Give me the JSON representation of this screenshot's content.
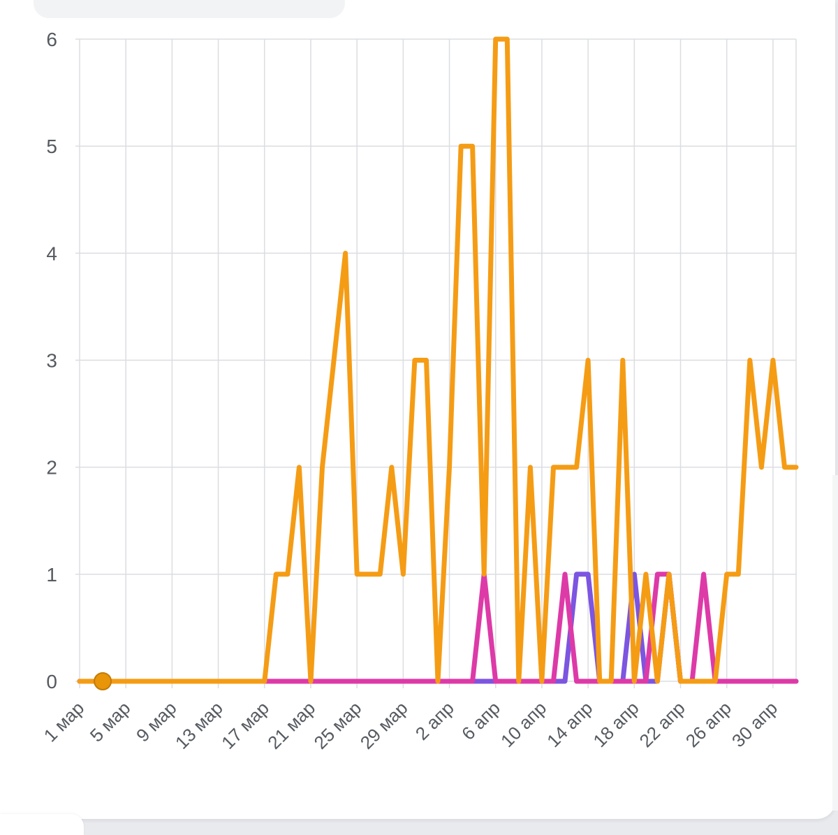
{
  "chart_data": {
    "type": "line",
    "x": [
      "1 мар",
      "2 мар",
      "3 мар",
      "4 мар",
      "5 мар",
      "6 мар",
      "7 мар",
      "8 мар",
      "9 мар",
      "10 мар",
      "11 мар",
      "12 мар",
      "13 мар",
      "14 мар",
      "15 мар",
      "16 мар",
      "17 мар",
      "18 мар",
      "19 мар",
      "20 мар",
      "21 мар",
      "22 мар",
      "23 мар",
      "24 мар",
      "25 мар",
      "26 мар",
      "27 мар",
      "28 мар",
      "29 мар",
      "30 мар",
      "31 мар",
      "1 апр",
      "2 апр",
      "3 апр",
      "4 апр",
      "5 апр",
      "6 апр",
      "7 апр",
      "8 апр",
      "9 апр",
      "10 апр",
      "11 апр",
      "12 апр",
      "13 апр",
      "14 апр",
      "15 апр",
      "16 апр",
      "17 апр",
      "18 апр",
      "19 апр",
      "20 апр",
      "21 апр",
      "22 апр",
      "23 апр",
      "24 апр",
      "25 апр",
      "26 апр",
      "27 апр",
      "28 апр",
      "29 апр",
      "30 апр",
      "1 мая",
      "2 мая"
    ],
    "xtick_labels": [
      "1 мар",
      "5 мар",
      "9 мар",
      "13 мар",
      "17 мар",
      "21 мар",
      "25 мар",
      "29 мар",
      "2 апр",
      "6 апр",
      "10 апр",
      "14 апр",
      "18 апр",
      "22 апр",
      "26 апр",
      "30 апр"
    ],
    "yticks": [
      "0",
      "1",
      "2",
      "3",
      "4",
      "5",
      "6"
    ],
    "ylim": [
      0,
      6
    ],
    "grid": true,
    "series": [
      {
        "color": "#7c55e0",
        "values": [
          0,
          0,
          0,
          0,
          0,
          0,
          0,
          0,
          0,
          0,
          0,
          0,
          0,
          0,
          0,
          0,
          0,
          0,
          0,
          0,
          0,
          0,
          0,
          0,
          0,
          0,
          0,
          0,
          0,
          0,
          0,
          0,
          0,
          0,
          0,
          0,
          0,
          0,
          0,
          0,
          0,
          0,
          0,
          1,
          1,
          0,
          0,
          0,
          1,
          0,
          0,
          1,
          0,
          0,
          0,
          0,
          0,
          0,
          0,
          0,
          0,
          0,
          0
        ]
      },
      {
        "color": "#dd3aa8",
        "values": [
          0,
          0,
          0,
          0,
          0,
          0,
          0,
          0,
          0,
          0,
          0,
          0,
          0,
          0,
          0,
          0,
          0,
          0,
          0,
          0,
          0,
          0,
          0,
          0,
          0,
          0,
          0,
          0,
          0,
          0,
          0,
          0,
          0,
          0,
          0,
          1,
          0,
          0,
          0,
          0,
          0,
          0,
          1,
          0,
          0,
          0,
          0,
          0,
          0,
          0,
          1,
          1,
          0,
          0,
          1,
          0,
          0,
          0,
          0,
          0,
          0,
          0,
          0
        ]
      },
      {
        "color": "#f59c15",
        "values": [
          0,
          0,
          0,
          0,
          0,
          0,
          0,
          0,
          0,
          0,
          0,
          0,
          0,
          0,
          0,
          0,
          0,
          1,
          1,
          2,
          0,
          2,
          3,
          4,
          1,
          1,
          1,
          2,
          1,
          3,
          3,
          0,
          2,
          5,
          5,
          1,
          6,
          6,
          0,
          2,
          0,
          2,
          2,
          2,
          3,
          0,
          0,
          3,
          0,
          1,
          0,
          1,
          0,
          0,
          0,
          0,
          1,
          1,
          3,
          2,
          3,
          2,
          2
        ]
      }
    ],
    "marker_color": "#e8950a"
  }
}
